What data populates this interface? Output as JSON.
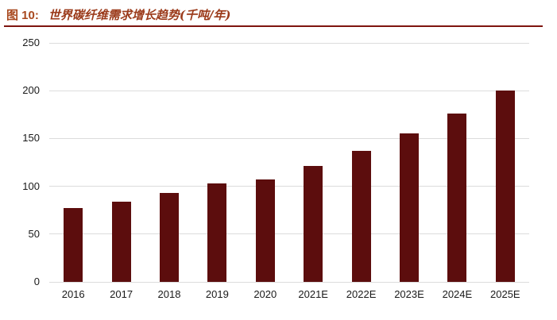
{
  "header": {
    "figure_label": "图 10:",
    "title": "世界碳纤维需求增长趋势(千吨/年)",
    "label_color": "#A8481E",
    "title_color": "#9B3A1A",
    "rule_color": "#7E150F"
  },
  "chart_data": {
    "type": "bar",
    "title": "世界碳纤维需求增长趋势(千吨/年)",
    "categories": [
      "2016",
      "2017",
      "2018",
      "2019",
      "2020",
      "2021E",
      "2022E",
      "2023E",
      "2024E",
      "2025E"
    ],
    "values": [
      77,
      84,
      93,
      103,
      107,
      121,
      137,
      155,
      176,
      200
    ],
    "unit": "千吨/年",
    "xlabel": "",
    "ylabel": "",
    "ylim": [
      0,
      250
    ],
    "yticks": [
      0,
      50,
      100,
      150,
      200,
      250
    ],
    "grid": "horizontal",
    "legend": "none",
    "bar_color": "#5C0D0D",
    "gridline_color": "#DCDCDC",
    "axis_text_color": "#1a1a1a"
  }
}
